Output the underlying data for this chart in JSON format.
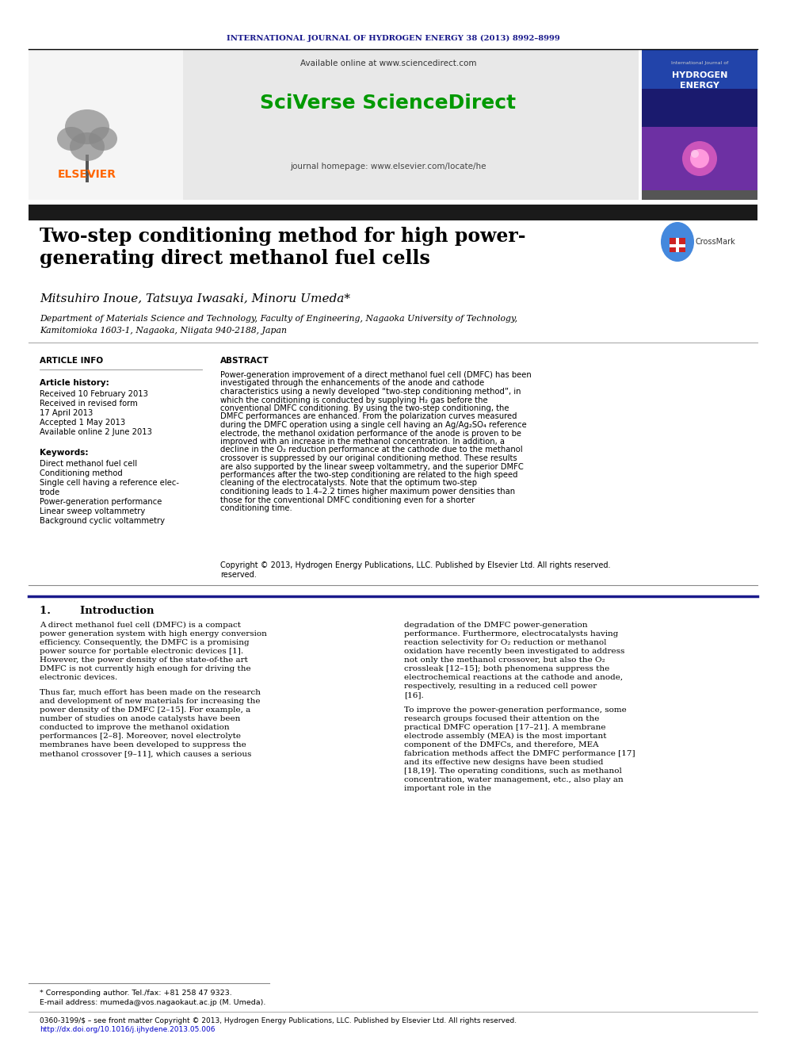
{
  "page_width": 9.92,
  "page_height": 13.23,
  "bg_color": "#ffffff",
  "header_journal_text": "INTERNATIONAL JOURNAL OF HYDROGEN ENERGY 38 (2013) 8992–8999",
  "header_text_color": "#1a1a8c",
  "header_line_color": "#000000",
  "elsevier_text": "ELSEVIER",
  "elsevier_color": "#ff6600",
  "available_online_text": "Available online at www.sciencedirect.com",
  "sciverse_text": "SciVerse ScienceDirect",
  "sciverse_color": "#009900",
  "journal_homepage_text": "journal homepage: www.elsevier.com/locate/he",
  "header_bg_color": "#e8e8e8",
  "black_bar_color": "#1a1a1a",
  "title_line1": "Two-step conditioning method for high power-",
  "title_line2": "generating direct methanol fuel cells",
  "title_color": "#000000",
  "authors": "Mitsuhiro Inoue, Tatsuya Iwasaki, Minoru Umeda*",
  "authors_color": "#000000",
  "affiliation1": "Department of Materials Science and Technology, Faculty of Engineering, Nagaoka University of Technology,",
  "affiliation2": "Kamitomioka 1603-1, Nagaoka, Niigata 940-2188, Japan",
  "article_info_header": "ARTICLE INFO",
  "abstract_header": "ABSTRACT",
  "article_history_label": "Article history:",
  "received_text": "Received 10 February 2013",
  "revised_text": "Received in revised form",
  "revised_date": "17 April 2013",
  "accepted_text": "Accepted 1 May 2013",
  "available_text": "Available online 2 June 2013",
  "keywords_label": "Keywords:",
  "kw1": "Direct methanol fuel cell",
  "kw2": "Conditioning method",
  "kw3": "Single cell having a reference elec-",
  "kw4": "trode",
  "kw5": "Power-generation performance",
  "kw6": "Linear sweep voltammetry",
  "kw7": "Background cyclic voltammetry",
  "abstract_text": "Power-generation improvement of a direct methanol fuel cell (DMFC) has been investigated through the enhancements of the anode and cathode characteristics using a newly developed “two-step conditioning method”, in which the conditioning is conducted by supplying H₂ gas before the conventional DMFC conditioning. By using the two-step conditioning, the DMFC performances are enhanced. From the polarization curves measured during the DMFC operation using a single cell having an Ag/Ag₂SO₄ reference electrode, the methanol oxidation performance of the anode is proven to be improved with an increase in the methanol concentration. In addition, a decline in the O₂ reduction performance at the cathode due to the methanol crossover is suppressed by our original conditioning method. These results are also supported by the linear sweep voltammetry, and the superior DMFC performances after the two-step conditioning are related to the high speed cleaning of the electrocatalysts. Note that the optimum two-step conditioning leads to 1.4–2.2 times higher maximum power densities than those for the conventional DMFC conditioning even for a shorter conditioning time.",
  "copyright_text": "Copyright © 2013, Hydrogen Energy Publications, LLC. Published by Elsevier Ltd. All rights reserved.",
  "section1_header": "1.        Introduction",
  "intro_col1_para1": "A direct methanol fuel cell (DMFC) is a compact power generation system with high energy conversion efficiency. Consequently, the DMFC is a promising power source for portable electronic devices [1]. However, the power density of the state-of-the art DMFC is not currently high enough for driving the electronic devices.",
  "intro_col1_para2": "Thus far, much effort has been made on the research and development of new materials for increasing the power density of the DMFC [2–15]. For example, a number of studies on anode catalysts have been conducted to improve the methanol oxidation performances [2–8]. Moreover, novel electrolyte membranes have been developed to suppress the methanol crossover [9–11], which causes a serious",
  "intro_col2_para1": "degradation of the DMFC power-generation performance. Furthermore, electrocatalysts having reaction selectivity for O₂ reduction or methanol oxidation have recently been investigated to address not only the methanol crossover, but also the O₂ crossleak [12–15]; both phenomena suppress the electrochemical reactions at the cathode and anode, respectively, resulting in a reduced cell power [16].",
  "intro_col2_para2": "To improve the power-generation performance, some research groups focused their attention on the practical DMFC operation [17–21]. A membrane electrode assembly (MEA) is the most important component of the DMFCs, and therefore, MEA fabrication methods affect the DMFC performance [17] and its effective new designs have been studied [18,19]. The operating conditions, such as methanol concentration, water management, etc., also play an important role in the",
  "footnote_star": "* Corresponding author. Tel./fax: +81 258 47 9323.",
  "footnote_email": "E-mail address: mumeda@vos.nagaokaut.ac.jp (M. Umeda).",
  "footnote_issn": "0360-3199/$ – see front matter Copyright © 2013, Hydrogen Energy Publications, LLC. Published by Elsevier Ltd. All rights reserved.",
  "footnote_doi": "http://dx.doi.org/10.1016/j.ijhydene.2013.05.006",
  "section_line_color": "#1a1a8c",
  "text_color": "#000000"
}
